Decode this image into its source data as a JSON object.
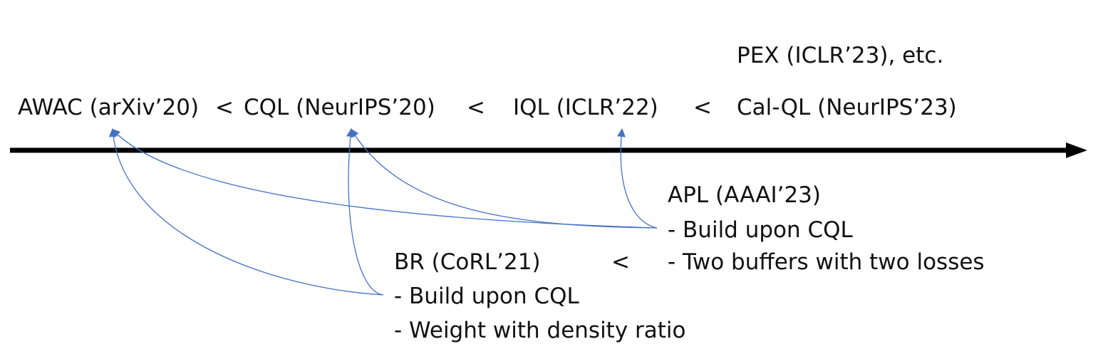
{
  "timeline": {
    "methods": [
      {
        "id": "awac",
        "label": "AWAC (arXiv’20)"
      },
      {
        "id": "cql",
        "label": "CQL (NeurIPS’20)"
      },
      {
        "id": "iql",
        "label": "IQL (ICLR’22)"
      },
      {
        "id": "calql",
        "label": "Cal-QL (NeurIPS’23)"
      }
    ],
    "top_note": "PEX (ICLR’23), etc.",
    "separators": [
      "<",
      "<",
      "<"
    ]
  },
  "branches": {
    "apl": {
      "title": "APL (AAAI’23)",
      "bullets": [
        "- Build upon CQL",
        "- Two buffers with two losses"
      ]
    },
    "br": {
      "title": "BR (CoRL’21)",
      "bullets": [
        "- Build upon CQL",
        "- Weight with density ratio"
      ]
    },
    "separator": "<"
  },
  "colors": {
    "axis": "#000000",
    "connector": "#4472c4",
    "text": "#111111"
  }
}
